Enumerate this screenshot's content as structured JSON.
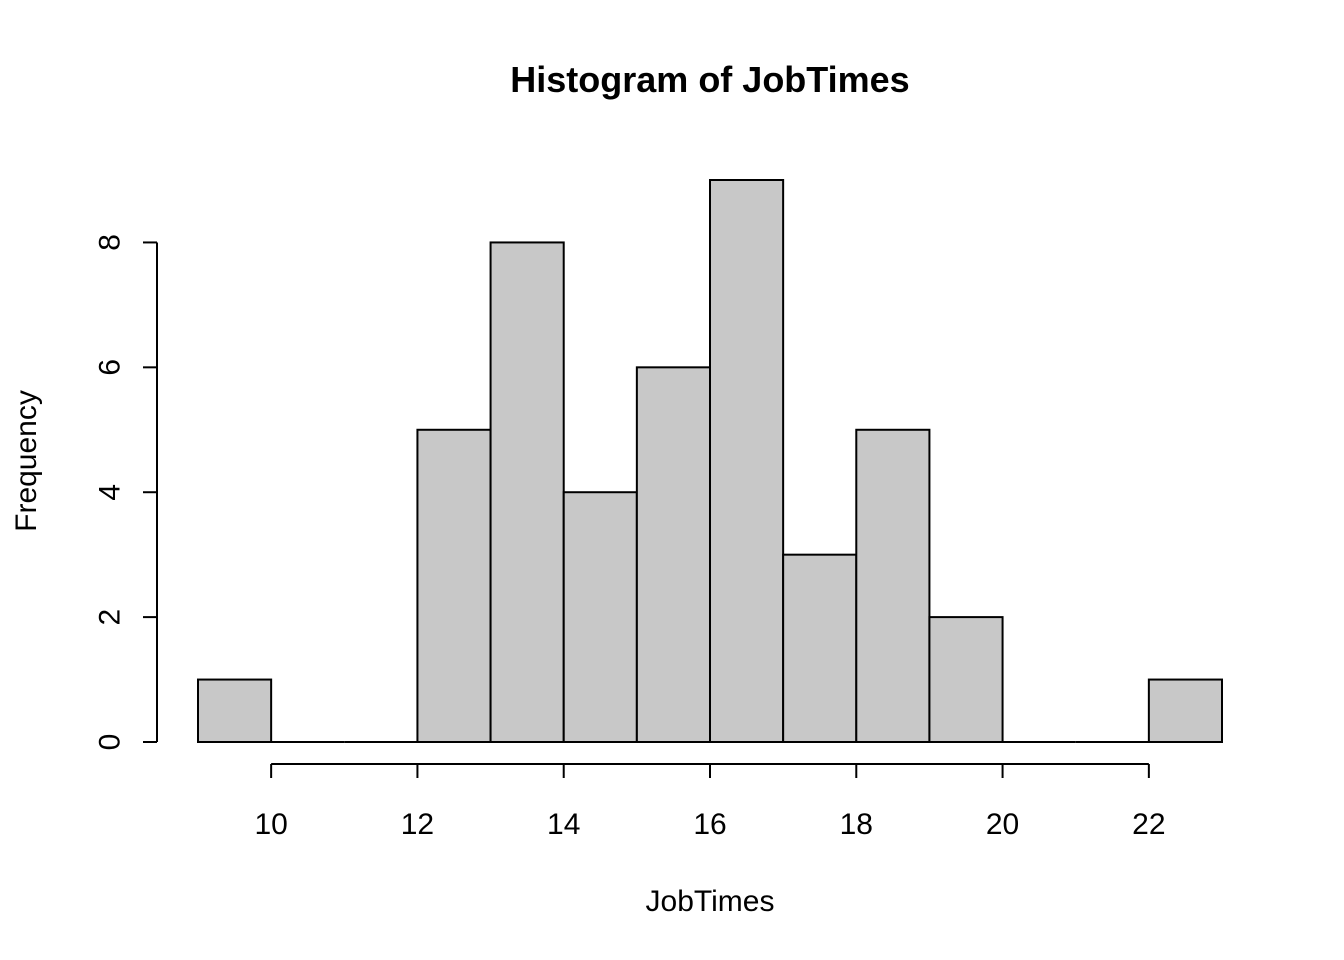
{
  "chart_data": {
    "type": "bar",
    "subtype": "histogram",
    "title": "Histogram of JobTimes",
    "xlabel": "JobTimes",
    "ylabel": "Frequency",
    "bins": [
      {
        "start": 9,
        "end": 10,
        "count": 1
      },
      {
        "start": 10,
        "end": 11,
        "count": 0
      },
      {
        "start": 11,
        "end": 12,
        "count": 0
      },
      {
        "start": 12,
        "end": 13,
        "count": 5
      },
      {
        "start": 13,
        "end": 14,
        "count": 8
      },
      {
        "start": 14,
        "end": 15,
        "count": 4
      },
      {
        "start": 15,
        "end": 16,
        "count": 6
      },
      {
        "start": 16,
        "end": 17,
        "count": 9
      },
      {
        "start": 17,
        "end": 18,
        "count": 3
      },
      {
        "start": 18,
        "end": 19,
        "count": 5
      },
      {
        "start": 19,
        "end": 20,
        "count": 2
      },
      {
        "start": 20,
        "end": 21,
        "count": 0
      },
      {
        "start": 21,
        "end": 22,
        "count": 0
      },
      {
        "start": 22,
        "end": 23,
        "count": 1
      }
    ],
    "xlim": [
      9,
      23
    ],
    "ylim": [
      0,
      9
    ],
    "x_axis_range": [
      10,
      22
    ],
    "y_axis_range": [
      0,
      8
    ],
    "x_ticks": [
      "10",
      "12",
      "14",
      "16",
      "18",
      "20",
      "22"
    ],
    "y_ticks": [
      "0",
      "2",
      "4",
      "6",
      "8"
    ],
    "bar_color": "#c8c8c8",
    "grid": false,
    "legend": "none"
  }
}
